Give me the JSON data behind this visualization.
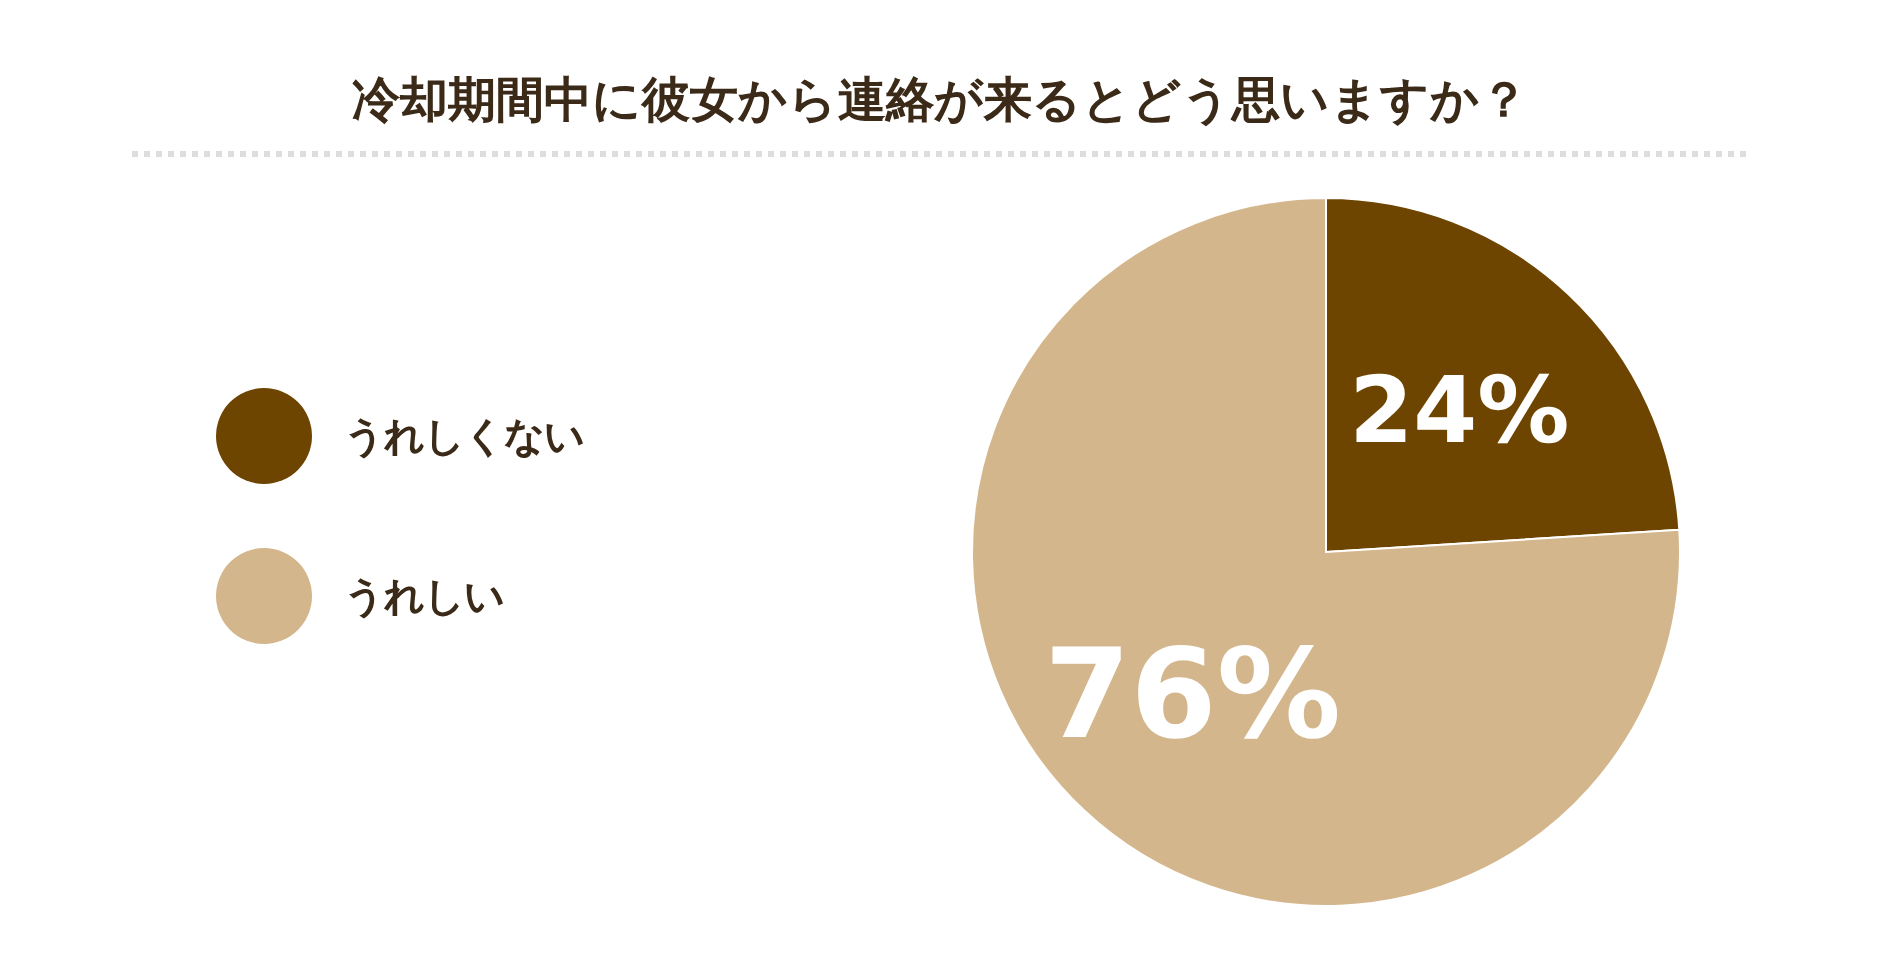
{
  "chart_data": {
    "type": "pie",
    "title": "冷却期間中に彼女から連絡が来るとどう思いますか？",
    "categories": [
      "うれしくない",
      "うれしい"
    ],
    "values": [
      24,
      76
    ],
    "colors": [
      "#6e4500",
      "#d4b68c"
    ],
    "value_labels": [
      "24%",
      "76%"
    ],
    "legend": "left"
  }
}
